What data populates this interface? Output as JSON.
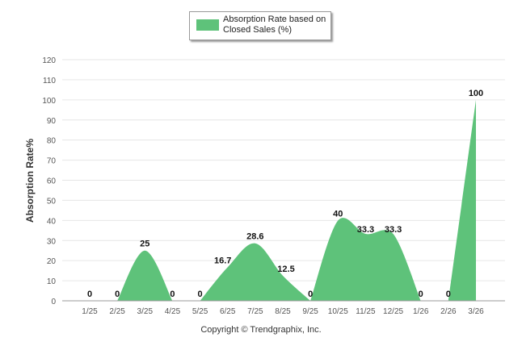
{
  "legend": {
    "label": "Absorption Rate based on Closed Sales (%)"
  },
  "footer": {
    "copyright": "Copyright © Trendgraphix, Inc."
  },
  "colors": {
    "series": "#5ec27a",
    "grid": "#e6e6e6",
    "axis": "#9a9a9a",
    "tick_text": "#555555"
  },
  "chart_data": {
    "type": "area",
    "title": "",
    "xlabel": "",
    "ylabel": "Absorption Rate%",
    "ylim": [
      0,
      120
    ],
    "yticks": [
      0,
      10,
      20,
      30,
      40,
      50,
      60,
      70,
      80,
      90,
      100,
      110,
      120
    ],
    "grid": true,
    "legend_position": "top-center",
    "categories": [
      "1/25",
      "2/25",
      "3/25",
      "4/25",
      "5/25",
      "6/25",
      "7/25",
      "8/25",
      "9/25",
      "10/25",
      "11/25",
      "12/25",
      "1/26",
      "2/26",
      "3/26"
    ],
    "series": [
      {
        "name": "Absorption Rate based on Closed Sales (%)",
        "values": [
          0,
          0,
          25,
          0,
          0,
          16.7,
          28.6,
          12.5,
          0,
          40,
          33.3,
          33.3,
          0,
          0,
          100
        ],
        "labels": [
          "0",
          "0",
          "25",
          "0",
          "0",
          "16.7",
          "28.6",
          "12.5",
          "0",
          "40",
          "33.3",
          "33.3",
          "0",
          "0",
          "100"
        ]
      }
    ]
  }
}
